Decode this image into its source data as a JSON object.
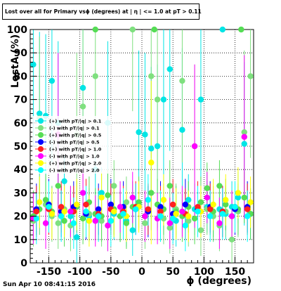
{
  "header": {
    "title": "Lost over all for Primary vsϕ (degrees) at | η | <= 1.0 at pT > 0.11",
    "timestamp": "Sun Apr 10 08:41:15 2016"
  },
  "chart_data": {
    "type": "scatter",
    "title": "Lost over all for Primary vsϕ (degrees) at | η | <= 1.0 at pT > 0.11",
    "xlabel": "ϕ (degrees)",
    "ylabel": "LostA (%)",
    "xlim": [
      -180,
      180
    ],
    "ylim": [
      0,
      100
    ],
    "x_ticks": [
      -150,
      -100,
      -50,
      0,
      50,
      100,
      150
    ],
    "y_ticks": [
      0,
      10,
      20,
      30,
      40,
      50,
      60,
      70,
      80,
      90,
      100
    ],
    "grid": true,
    "legend_position": "left-middle",
    "legend": [
      {
        "label": "(+) with pT/|q| > 0.1",
        "color": "#00e5e5"
      },
      {
        "label": "(-) with pT/|q| > 0.1",
        "color": "#7fe07f"
      },
      {
        "label": "(+) with pT/|q| > 0.5",
        "color": "#55dd55"
      },
      {
        "label": "(-) with pT/|q| > 0.5",
        "color": "#0000ff"
      },
      {
        "label": "(+) with pT/|q| > 1.0",
        "color": "#ff2020"
      },
      {
        "label": "(-) with pT/|q| > 1.0",
        "color": "#ff00ff"
      },
      {
        "label": "(+) with pT/|q| > 2.0",
        "color": "#ffff00"
      },
      {
        "label": "(-) with pT/|q| > 2.0",
        "color": "#00ffff"
      }
    ],
    "series": [
      {
        "color": "#00e5e5",
        "x": [
          -175,
          -165,
          -155,
          -145,
          -135,
          -125,
          -115,
          -105,
          -95,
          -85,
          -75,
          -65,
          -55,
          -45,
          -35,
          -25,
          -15,
          -5,
          5,
          15,
          25,
          35,
          45,
          55,
          65,
          75,
          85,
          95,
          105,
          115,
          125,
          135,
          145,
          155,
          165,
          175
        ],
        "y": [
          85,
          64,
          63,
          78,
          60,
          35,
          20,
          11,
          75,
          20,
          40,
          30,
          60,
          21,
          20,
          18,
          14,
          56,
          55,
          49,
          50,
          70,
          83,
          18,
          57,
          27,
          23,
          70,
          24,
          20,
          23,
          21,
          24,
          28,
          51,
          21
        ]
      },
      {
        "color": "#7fe07f",
        "x": [
          -175,
          -165,
          -155,
          -145,
          -135,
          -125,
          -115,
          -105,
          -95,
          -85,
          -75,
          -65,
          -55,
          -45,
          -35,
          -25,
          -15,
          -5,
          5,
          15,
          25,
          35,
          45,
          55,
          65,
          75,
          85,
          95,
          105,
          115,
          125,
          135,
          145,
          155,
          165,
          175
        ],
        "y": [
          18,
          62,
          25,
          20,
          17,
          23,
          16,
          55,
          67,
          21,
          80,
          18,
          16,
          33,
          20,
          26,
          100,
          25,
          17,
          80,
          70,
          19,
          15,
          23,
          78,
          18,
          50,
          14,
          23,
          20,
          16,
          22,
          10,
          22,
          56,
          80
        ]
      },
      {
        "color": "#55dd55",
        "x": [
          -175,
          -165,
          -155,
          -145,
          -135,
          -125,
          -115,
          -105,
          -95,
          -85,
          -75,
          -65,
          -55,
          -45,
          -35,
          -25,
          -15,
          -5,
          5,
          15,
          25,
          35,
          45,
          55,
          65,
          75,
          85,
          95,
          105,
          115,
          125,
          135,
          145,
          155,
          165,
          175
        ],
        "y": [
          20,
          23,
          27,
          22,
          33,
          18,
          22,
          24,
          19,
          26,
          21,
          20,
          29,
          23,
          20,
          17,
          24,
          26,
          20,
          30,
          25,
          23,
          33,
          22,
          20,
          24,
          19,
          26,
          32,
          22,
          33,
          25,
          20,
          23,
          28,
          21
        ]
      },
      {
        "color": "#0000ff",
        "x": [
          -170,
          -150,
          -130,
          -110,
          -90,
          -70,
          -50,
          -30,
          -10,
          10,
          30,
          50,
          70,
          90,
          110,
          130,
          150,
          170
        ],
        "y": [
          23,
          25,
          22,
          24,
          21,
          23,
          25,
          24,
          23,
          22,
          24,
          21,
          25,
          23,
          24,
          22,
          23,
          24
        ]
      },
      {
        "color": "#ff2020",
        "x": [
          -170,
          -150,
          -130,
          -110,
          -90,
          -70,
          -50,
          -30,
          -10,
          10,
          30,
          50,
          70,
          90,
          110,
          130,
          150,
          170
        ],
        "y": [
          22,
          23,
          24,
          22,
          25,
          21,
          23,
          22,
          24,
          23,
          22,
          25,
          21,
          24,
          23,
          22,
          24,
          23
        ]
      },
      {
        "color": "#ff00ff",
        "x": [
          -175,
          -155,
          -135,
          -115,
          -95,
          -75,
          -55,
          -35,
          -15,
          5,
          25,
          45,
          65,
          85,
          105,
          125,
          145,
          165
        ],
        "y": [
          19,
          17,
          55,
          22,
          30,
          18,
          16,
          24,
          28,
          20,
          19,
          17,
          22,
          50,
          28,
          17,
          20,
          54
        ]
      },
      {
        "color": "#ffff00",
        "x": [
          -165,
          -145,
          -125,
          -105,
          -85,
          -65,
          -45,
          -25,
          -5,
          15,
          35,
          55,
          75,
          95,
          115,
          135,
          155,
          175
        ],
        "y": [
          26,
          21,
          22,
          25,
          18,
          28,
          22,
          20,
          24,
          43,
          27,
          21,
          20,
          22,
          25,
          27,
          30,
          26
        ]
      },
      {
        "color": "#00ffff",
        "x": [
          -170,
          -150,
          -130,
          -110,
          -90,
          -70,
          -50,
          -30,
          -10,
          10,
          30,
          50,
          70,
          90,
          110,
          130,
          150,
          170
        ],
        "y": [
          19,
          24,
          20,
          17,
          22,
          20,
          18,
          21,
          23,
          27,
          20,
          19,
          16,
          22,
          20,
          21,
          24,
          20
        ]
      }
    ],
    "top_edge_markers": [
      {
        "color": "#55dd55",
        "x": -75,
        "y": 100
      },
      {
        "color": "#55dd55",
        "x": 20,
        "y": 100
      },
      {
        "color": "#00e5e5",
        "x": 130,
        "y": 100
      },
      {
        "color": "#55dd55",
        "x": 160,
        "y": 100
      }
    ]
  }
}
